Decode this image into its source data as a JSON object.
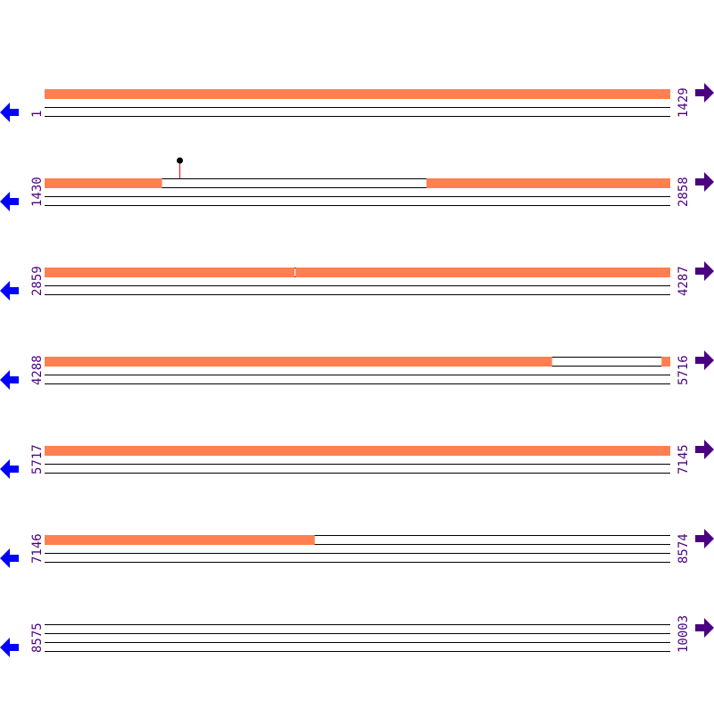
{
  "colors": {
    "feature": "#ff7f50",
    "label": "#4b0082",
    "left_arrow": "#0000ff",
    "right_arrow": "#4b0082",
    "marker_stem": "#ff0000",
    "marker_dot": "#000000"
  },
  "rows": [
    {
      "start": 1,
      "end": 1429,
      "start_label": "1",
      "end_label": "1429",
      "features": [
        [
          1,
          1429
        ]
      ]
    },
    {
      "start": 1430,
      "end": 2858,
      "start_label": "1430",
      "end_label": "2858",
      "features": [
        [
          1430,
          1697
        ],
        [
          2302,
          2858
        ]
      ],
      "markers": [
        1738
      ]
    },
    {
      "start": 2859,
      "end": 4287,
      "start_label": "2859",
      "end_label": "4287",
      "features": [
        [
          2859,
          3429
        ],
        [
          3432,
          4287
        ]
      ]
    },
    {
      "start": 4288,
      "end": 5716,
      "start_label": "4288",
      "end_label": "5716",
      "features": [
        [
          4288,
          5446
        ],
        [
          5697,
          5716
        ]
      ]
    },
    {
      "start": 5717,
      "end": 7145,
      "start_label": "5717",
      "end_label": "7145",
      "features": [
        [
          5717,
          7145
        ]
      ]
    },
    {
      "start": 7146,
      "end": 8574,
      "start_label": "7146",
      "end_label": "8574",
      "features": [
        [
          7146,
          7762
        ]
      ]
    },
    {
      "start": 8575,
      "end": 10003,
      "start_label": "8575",
      "end_label": "10003",
      "features": []
    }
  ]
}
